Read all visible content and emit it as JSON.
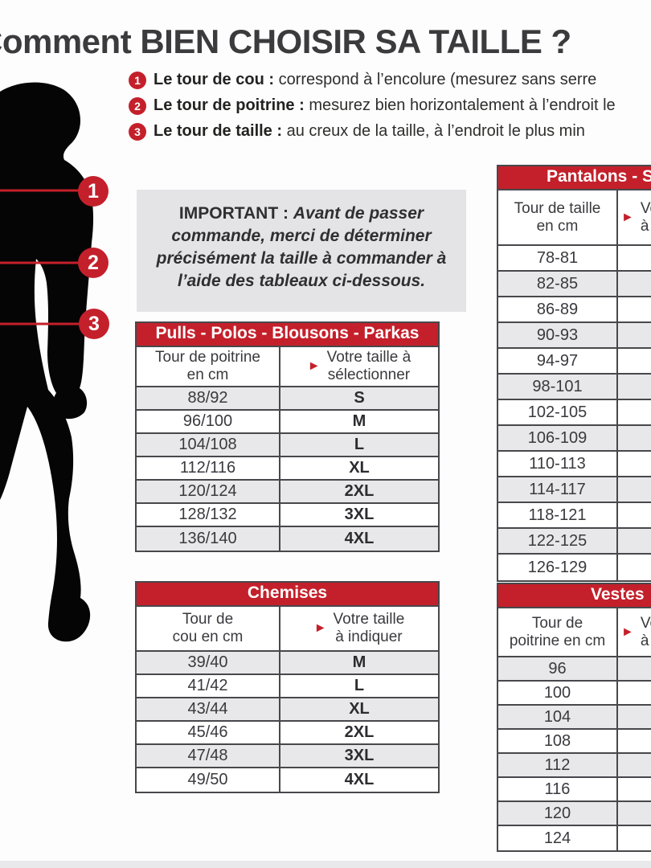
{
  "title": "Comment BIEN CHOISIR SA TAILLE ?",
  "colors": {
    "accent_red": "#c4202b",
    "row_gray": "#e8e8ea",
    "box_gray": "#e4e4e6",
    "border_dark": "#48484c"
  },
  "instructions": [
    {
      "num": "1",
      "label": "Le tour de cou :",
      "text": "correspond à l’encolure (mesurez sans serre"
    },
    {
      "num": "2",
      "label": "Le tour de poitrine :",
      "text": "mesurez bien horizontalement à l’endroit le"
    },
    {
      "num": "3",
      "label": "Le tour de taille :",
      "text": "au creux de la taille, à l’endroit le plus min"
    }
  ],
  "important_box": {
    "label": "IMPORTANT :",
    "text": "Avant de passer commande, merci de déterminer précisément la taille à commander à l’aide des tableaux ci-dessous."
  },
  "body_markers": [
    {
      "num": "1"
    },
    {
      "num": "2"
    },
    {
      "num": "3"
    }
  ],
  "arrow_icon": "►",
  "tables": {
    "pulls": {
      "title": "Pulls - Polos - Blousons - Parkas",
      "col1": "Tour de poitrine\nen cm",
      "col2": "Votre taille à\nsélectionner",
      "gray_first": true,
      "rows": [
        [
          "88/92",
          "S"
        ],
        [
          "96/100",
          "M"
        ],
        [
          "104/108",
          "L"
        ],
        [
          "112/116",
          "XL"
        ],
        [
          "120/124",
          "2XL"
        ],
        [
          "128/132",
          "3XL"
        ],
        [
          "136/140",
          "4XL"
        ]
      ]
    },
    "chemises": {
      "title": "Chemises",
      "col1": "Tour de\ncou en cm",
      "col2": "Votre taille\nà indiquer",
      "gray_first": true,
      "rows": [
        [
          "39/40",
          "M"
        ],
        [
          "41/42",
          "L"
        ],
        [
          "43/44",
          "XL"
        ],
        [
          "45/46",
          "2XL"
        ],
        [
          "47/48",
          "3XL"
        ],
        [
          "49/50",
          "4XL"
        ]
      ]
    },
    "pantalons": {
      "title": "Pantalons - Shorts",
      "col1": "Tour de taille\nen cm",
      "col2": "Votre taille\nà sélectionner",
      "gray_first": false,
      "rows": [
        [
          "78-81",
          ""
        ],
        [
          "82-85",
          ""
        ],
        [
          "86-89",
          ""
        ],
        [
          "90-93",
          ""
        ],
        [
          "94-97",
          ""
        ],
        [
          "98-101",
          ""
        ],
        [
          "102-105",
          ""
        ],
        [
          "106-109",
          ""
        ],
        [
          "110-113",
          ""
        ],
        [
          "114-117",
          ""
        ],
        [
          "118-121",
          ""
        ],
        [
          "122-125",
          ""
        ],
        [
          "126-129",
          ""
        ]
      ]
    },
    "vestes": {
      "title": "Vestes",
      "col1": "Tour de\npoitrine en cm",
      "col2": "Votre taille\nà indiquer",
      "gray_first": true,
      "rows": [
        [
          "96",
          ""
        ],
        [
          "100",
          ""
        ],
        [
          "104",
          ""
        ],
        [
          "108",
          ""
        ],
        [
          "112",
          ""
        ],
        [
          "116",
          ""
        ],
        [
          "120",
          ""
        ],
        [
          "124",
          ""
        ]
      ]
    }
  }
}
